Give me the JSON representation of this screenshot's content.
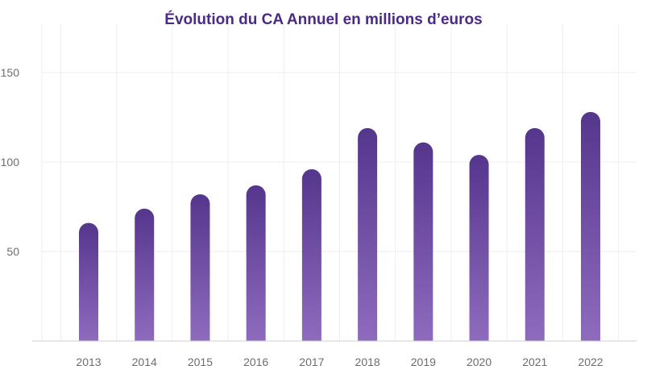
{
  "chart_data": {
    "type": "bar",
    "title": "Évolution du CA Annuel en millions d’euros",
    "xlabel": "",
    "ylabel": "",
    "categories": [
      "2013",
      "2014",
      "2015",
      "2016",
      "2017",
      "2018",
      "2019",
      "2020",
      "2021",
      "2022"
    ],
    "values": [
      66,
      74,
      82,
      87,
      96,
      119,
      111,
      104,
      119,
      128
    ],
    "ylim": [
      0,
      175
    ],
    "yticks": [
      50,
      100,
      150
    ],
    "grid": true,
    "legend": "none"
  },
  "colors": {
    "bar_top": "#55368d",
    "bar_bottom": "#8e6bbd",
    "title": "#4b2a86",
    "grid": "#eeeeee",
    "axis": "#cfcfcf",
    "tick_text": "#6e6e6e"
  }
}
